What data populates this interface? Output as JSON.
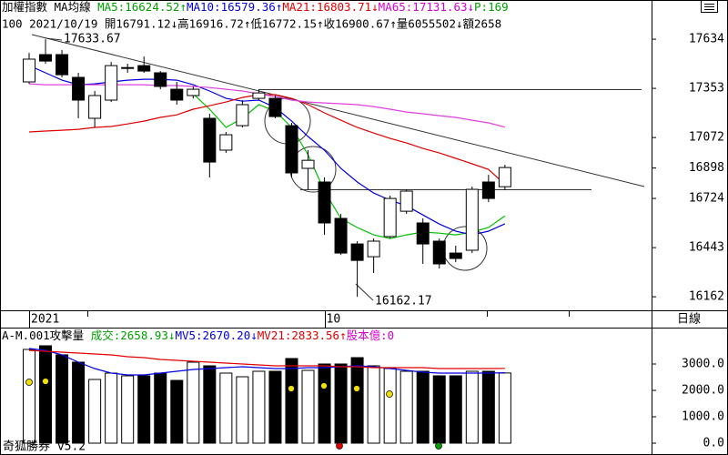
{
  "chart_data": [
    {
      "type": "candlestick",
      "header": [
        {
          "text": "加權指數 MA均線 ",
          "color": "#000000"
        },
        {
          "text": "MA5:16624.52↑",
          "color": "#00a000"
        },
        {
          "text": "MA10:16579.36↑",
          "color": "#0000e0"
        },
        {
          "text": "MA21:16803.71↓",
          "color": "#e00000"
        },
        {
          "text": "MA65:17131.63↓",
          "color": "#d000d0"
        },
        {
          "text": "P:169",
          "color": "#00a000"
        }
      ],
      "subheader": "100 2021/10/19 開16791.12↓高16916.72↑低16772.15↑收16900.67↑量6055502↓額2658",
      "categories": [
        "2021",
        null,
        null,
        null,
        null,
        null,
        null,
        null,
        null,
        null,
        null,
        null,
        null,
        null,
        null,
        null,
        null,
        null,
        "10",
        null,
        null,
        null,
        null,
        null,
        null,
        null,
        null,
        null,
        null,
        null
      ],
      "open": [
        17390,
        17546,
        17546,
        17416,
        17182,
        17286,
        17468,
        17483,
        17442,
        17348,
        17312,
        17182,
        17000,
        17140,
        17296,
        17296,
        17140,
        16896,
        16818,
        16610,
        16464,
        16391,
        16506,
        16651,
        16584,
        16480,
        16412,
        16428,
        16818,
        16791.12
      ],
      "high": [
        17556,
        17633.67,
        17572,
        17442,
        17338,
        17504,
        17494,
        17535,
        17452,
        17390,
        17364,
        17208,
        17104,
        17286,
        17348,
        17312,
        17156,
        17000,
        16844,
        16636,
        16480,
        16495,
        16740,
        16776,
        16610,
        16495,
        16454,
        16792,
        16859,
        16916.72
      ],
      "low": [
        17379,
        17494,
        17416,
        17182,
        17130,
        17275,
        17442,
        17442,
        17348,
        17260,
        17296,
        16844,
        16984,
        17130,
        17286,
        17182,
        16844,
        16776,
        16516,
        16401,
        16162.17,
        16298,
        16495,
        16636,
        16350,
        16324,
        16360,
        16412,
        16703,
        16772.15
      ],
      "close": [
        17520,
        17509,
        17431,
        17286,
        17312,
        17483,
        17472,
        17452,
        17364,
        17286,
        17348,
        16932,
        17088,
        17260,
        17327,
        17192,
        16870,
        16942,
        16584,
        16412,
        16370,
        16480,
        16724,
        16766,
        16464,
        16350,
        16381,
        16776,
        16724,
        16900.67
      ],
      "up_color": "#ffffff",
      "down_color": "#000000",
      "series": [
        {
          "name": "MA5",
          "color": "#00c000",
          "values": [
            null,
            null,
            null,
            null,
            null,
            null,
            null,
            null,
            null,
            null,
            17322,
            17234,
            17130,
            17182,
            17260,
            17223,
            17130,
            16974,
            16766,
            16610,
            16558,
            16516,
            16495,
            16516,
            16532,
            16526,
            16516,
            16532,
            16558,
            16624.52
          ]
        },
        {
          "name": "MA10",
          "color": "#0000e0",
          "values": [
            17483,
            17442,
            17400,
            17374,
            17379,
            17390,
            17400,
            17405,
            17405,
            17400,
            17374,
            17338,
            17296,
            17280,
            17286,
            17244,
            17166,
            17078,
            17000,
            16896,
            16818,
            16755,
            16714,
            16682,
            16630,
            16578,
            16537,
            16516,
            16537,
            16579.36
          ]
        },
        {
          "name": "MA21",
          "color": "#e00000",
          "values": [
            17104,
            17109,
            17114,
            17119,
            17130,
            17135,
            17150,
            17166,
            17187,
            17202,
            17234,
            17254,
            17275,
            17301,
            17317,
            17317,
            17296,
            17260,
            17213,
            17171,
            17130,
            17098,
            17067,
            17041,
            17010,
            16984,
            16953,
            16922,
            16890,
            16803.71
          ]
        },
        {
          "name": "MA65",
          "color": "#e040e0",
          "values": [
            17379,
            17374,
            17374,
            17374,
            17374,
            17374,
            17374,
            17374,
            17369,
            17369,
            17364,
            17358,
            17348,
            17338,
            17322,
            17306,
            17286,
            17275,
            17270,
            17265,
            17260,
            17249,
            17234,
            17218,
            17208,
            17197,
            17187,
            17171,
            17156,
            17131.63
          ]
        }
      ],
      "ylim": [
        16090,
        17858
      ],
      "yticks": [
        16162,
        16443,
        16724,
        16898,
        17072,
        17353,
        17634
      ],
      "period": "日線"
    },
    {
      "type": "volume",
      "header": [
        {
          "text": "A-M.001攻擊量 ",
          "color": "#000000"
        },
        {
          "text": "成交:2658.93↓",
          "color": "#00a000"
        },
        {
          "text": "MV5:2670.20↓",
          "color": "#0000e0"
        },
        {
          "text": "MV21:2833.56↑",
          "color": "#e00000"
        },
        {
          "text": "股本億:0",
          "color": "#d000d0"
        }
      ],
      "values": [
        3552,
        3690,
        3345,
        3069,
        2414,
        2655,
        2552,
        2552,
        2655,
        2379,
        3069,
        2931,
        2655,
        2517,
        2724,
        2724,
        3207,
        2759,
        3000,
        3000,
        3241,
        2931,
        2828,
        2724,
        2724,
        2552,
        2552,
        2724,
        2724,
        2658.93
      ],
      "series": [
        {
          "name": "MV5",
          "color": "#0000e0",
          "values": [
            3586,
            3517,
            3345,
            3069,
            2828,
            2655,
            2586,
            2586,
            2655,
            2724,
            2793,
            2828,
            2862,
            2897,
            2862,
            2828,
            2828,
            2862,
            2862,
            2897,
            2931,
            2897,
            2828,
            2759,
            2690,
            2655,
            2655,
            2655,
            2655,
            2670.2
          ]
        },
        {
          "name": "MV21",
          "color": "#e00000",
          "values": [
            3517,
            3483,
            3448,
            3414,
            3379,
            3345,
            3276,
            3241,
            3172,
            3138,
            3103,
            3069,
            3034,
            3000,
            2966,
            2931,
            2931,
            2931,
            2931,
            2897,
            2897,
            2862,
            2862,
            2862,
            2862,
            2828,
            2828,
            2828,
            2828,
            2833.56
          ]
        }
      ],
      "ylim": [
        0,
        4310
      ],
      "yticks": [
        {
          "value": 0,
          "label": "0.0"
        },
        {
          "value": 1000,
          "label": "1000.0"
        },
        {
          "value": 2000,
          "label": "2000.0"
        },
        {
          "value": 3000,
          "label": "3000.0"
        }
      ],
      "footer": "奇狐勝券 v5.2"
    }
  ]
}
